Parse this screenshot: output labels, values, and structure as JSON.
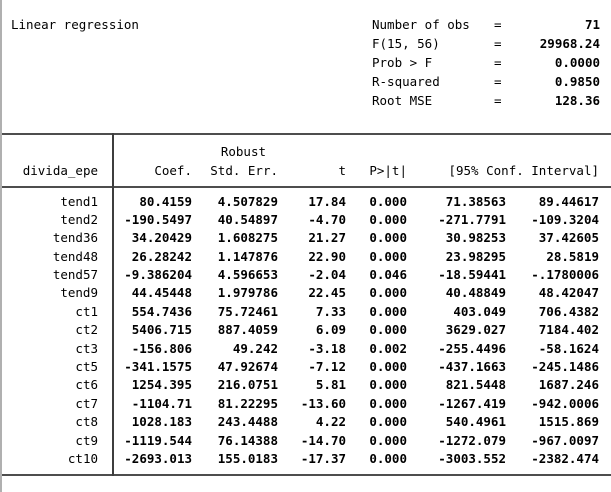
{
  "header": {
    "title": "Linear regression",
    "eq_sign": "=",
    "stats": [
      {
        "label": "Number of obs",
        "value": "71"
      },
      {
        "label": "F(15, 56)",
        "value": "29968.24"
      },
      {
        "label": "Prob > F",
        "value": "0.0000"
      },
      {
        "label": "R-squared",
        "value": "0.9850"
      },
      {
        "label": "Root MSE",
        "value": "128.36"
      }
    ]
  },
  "table": {
    "depvar": "divida_epe",
    "robust_label": "Robust",
    "columns": [
      "Coef.",
      "Std. Err.",
      "t",
      "P>|t|",
      "[95% Conf. Interval]"
    ],
    "rows": [
      {
        "name": "tend1",
        "coef": "80.4159",
        "se": "4.507829",
        "t": "17.84",
        "p": "0.000",
        "ci_low": "71.38563",
        "ci_high": "89.44617"
      },
      {
        "name": "tend2",
        "coef": "-190.5497",
        "se": "40.54897",
        "t": "-4.70",
        "p": "0.000",
        "ci_low": "-271.7791",
        "ci_high": "-109.3204"
      },
      {
        "name": "tend36",
        "coef": "34.20429",
        "se": "1.608275",
        "t": "21.27",
        "p": "0.000",
        "ci_low": "30.98253",
        "ci_high": "37.42605"
      },
      {
        "name": "tend48",
        "coef": "26.28242",
        "se": "1.147876",
        "t": "22.90",
        "p": "0.000",
        "ci_low": "23.98295",
        "ci_high": "28.5819"
      },
      {
        "name": "tend57",
        "coef": "-9.386204",
        "se": "4.596653",
        "t": "-2.04",
        "p": "0.046",
        "ci_low": "-18.59441",
        "ci_high": "-.1780006"
      },
      {
        "name": "tend9",
        "coef": "44.45448",
        "se": "1.979786",
        "t": "22.45",
        "p": "0.000",
        "ci_low": "40.48849",
        "ci_high": "48.42047"
      },
      {
        "name": "ct1",
        "coef": "554.7436",
        "se": "75.72461",
        "t": "7.33",
        "p": "0.000",
        "ci_low": "403.049",
        "ci_high": "706.4382"
      },
      {
        "name": "ct2",
        "coef": "5406.715",
        "se": "887.4059",
        "t": "6.09",
        "p": "0.000",
        "ci_low": "3629.027",
        "ci_high": "7184.402"
      },
      {
        "name": "ct3",
        "coef": "-156.806",
        "se": "49.242",
        "t": "-3.18",
        "p": "0.002",
        "ci_low": "-255.4496",
        "ci_high": "-58.1624"
      },
      {
        "name": "ct5",
        "coef": "-341.1575",
        "se": "47.92674",
        "t": "-7.12",
        "p": "0.000",
        "ci_low": "-437.1663",
        "ci_high": "-245.1486"
      },
      {
        "name": "ct6",
        "coef": "1254.395",
        "se": "216.0751",
        "t": "5.81",
        "p": "0.000",
        "ci_low": "821.5448",
        "ci_high": "1687.246"
      },
      {
        "name": "ct7",
        "coef": "-1104.71",
        "se": "81.22295",
        "t": "-13.60",
        "p": "0.000",
        "ci_low": "-1267.419",
        "ci_high": "-942.0006"
      },
      {
        "name": "ct8",
        "coef": "1028.183",
        "se": "243.4488",
        "t": "4.22",
        "p": "0.000",
        "ci_low": "540.4961",
        "ci_high": "1515.869"
      },
      {
        "name": "ct9",
        "coef": "-1119.544",
        "se": "76.14388",
        "t": "-14.70",
        "p": "0.000",
        "ci_low": "-1272.079",
        "ci_high": "-967.0097"
      },
      {
        "name": "ct10",
        "coef": "-2693.013",
        "se": "155.0183",
        "t": "-17.37",
        "p": "0.000",
        "ci_low": "-3003.552",
        "ci_high": "-2382.474"
      }
    ]
  },
  "colors": {
    "text": "#000000",
    "rule": "#4d4d4d",
    "window_border": "#b0b0b0",
    "background": "#ffffff"
  }
}
